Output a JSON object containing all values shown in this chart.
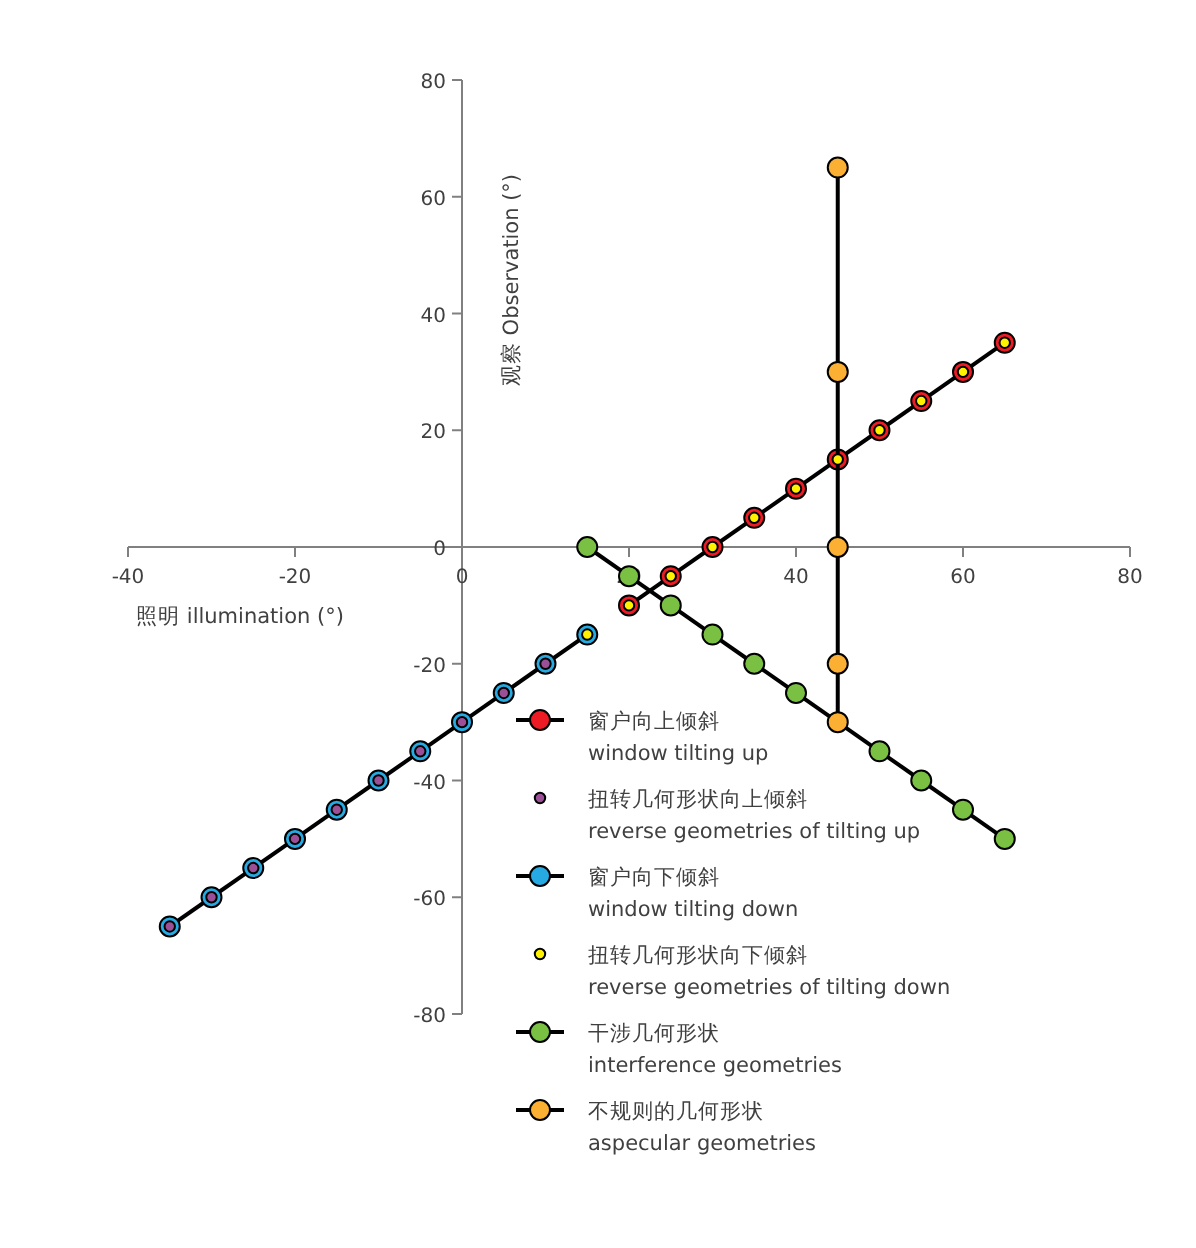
{
  "chart_data": {
    "type": "line",
    "xlabel": "照明 illumination (°)",
    "ylabel": "观察 Observation (°)",
    "xlim": [
      -40,
      80
    ],
    "xticks": [
      -40,
      -20,
      0,
      20,
      40,
      60,
      80
    ],
    "ylim": [
      -80,
      80
    ],
    "yticks": [
      -80,
      -60,
      -40,
      -20,
      0,
      20,
      40,
      60,
      80
    ],
    "grid": false,
    "legend": "bottom",
    "marker": "circle",
    "line_style": "solid",
    "series": [
      {
        "name": "窗户向上倾斜\nwindow tilting up",
        "color": "#ed1c24",
        "x": [
          20,
          25,
          30,
          35,
          40,
          45,
          50,
          55,
          60,
          65
        ],
        "values": [
          -10,
          -5,
          0,
          5,
          10,
          15,
          20,
          25,
          30,
          35
        ]
      },
      {
        "name": "扭转几何形状向上倾斜\nreverse geometries of tilting up",
        "type": "scatter",
        "color": "#9b4f96",
        "x": [
          -35,
          -30,
          -25,
          -20,
          -15,
          -10,
          -5,
          0,
          5,
          10
        ],
        "values": [
          -65,
          -60,
          -55,
          -50,
          -45,
          -40,
          -35,
          -30,
          -25,
          -20
        ]
      },
      {
        "name": "窗户向下倾斜\nwindow tilting down",
        "color": "#27aae1",
        "x": [
          -35,
          -30,
          -25,
          -20,
          -15,
          -10,
          -5,
          0,
          5,
          10,
          15
        ],
        "values": [
          -65,
          -60,
          -55,
          -50,
          -45,
          -40,
          -35,
          -30,
          -25,
          -20,
          -15
        ]
      },
      {
        "name": "扭转几何形状向下倾斜\nreverse geometries of tilting down",
        "type": "scatter",
        "color": "#fff200",
        "x": [
          15,
          20,
          25,
          30,
          35,
          40,
          45,
          50,
          55,
          60,
          65
        ],
        "values": [
          -15,
          -10,
          -5,
          0,
          5,
          10,
          15,
          20,
          25,
          30,
          35
        ]
      },
      {
        "name": "干涉几何形状\ninterference geometries",
        "color": "#7ac143",
        "x": [
          15,
          20,
          25,
          30,
          35,
          40,
          50,
          55,
          60,
          65
        ],
        "values": [
          0,
          -5,
          -10,
          -15,
          -20,
          -25,
          -35,
          -40,
          -45,
          -50
        ]
      },
      {
        "name": "不规则的几何形状\naspecular geometries",
        "color": "#fbb034",
        "x": [
          45,
          45,
          45,
          45,
          45
        ],
        "values": [
          65,
          30,
          0,
          -20,
          -30
        ]
      }
    ]
  }
}
